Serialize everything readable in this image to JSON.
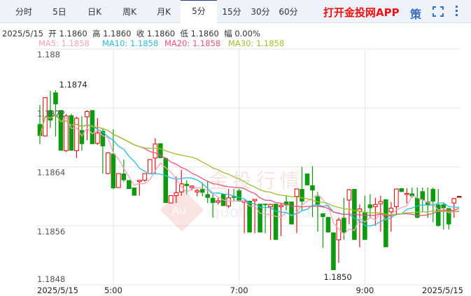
{
  "tabs": [
    {
      "label": "分时"
    },
    {
      "label": "5日"
    },
    {
      "label": "日K"
    },
    {
      "label": "周K"
    },
    {
      "label": "月K"
    },
    {
      "label": "5分",
      "active": true
    },
    {
      "label": "15分"
    },
    {
      "label": "30分"
    },
    {
      "label": "60分"
    }
  ],
  "promo": "打开金投网APP",
  "strategy_label": "策",
  "icons": {
    "fullscreen": "fullscreen-icon",
    "more": "more-vertical-icon"
  },
  "info": {
    "date": "2025/5/15",
    "open_label": "开",
    "open": "1.1860",
    "high_label": "高",
    "high": "1.1860",
    "close_label": "收",
    "close": "1.1860",
    "low_label": "低",
    "low": "1.1860",
    "change_label": "幅",
    "change": "0.00%"
  },
  "ma": [
    {
      "label": "MA5: 1.1858",
      "color": "#f7a3bd"
    },
    {
      "label": "MA10: 1.1858",
      "color": "#29bde0"
    },
    {
      "label": "MA20: 1.1858",
      "color": "#ee4f7d"
    },
    {
      "label": "MA30: 1.1858",
      "color": "#9dc02e"
    }
  ],
  "watermark": {
    "text": "金投行情",
    "logo": "Au",
    "url": "quote.cngold.org"
  },
  "chart_data": {
    "type": "candlestick",
    "colors": {
      "up": "#ee1111",
      "down": "#0e9a0e"
    },
    "ylim": [
      1.1848,
      1.188
    ],
    "yticks": [
      "1.188",
      "1.1872",
      "1.1864",
      "1.1856",
      "1.1848"
    ],
    "xticks": [
      {
        "label": "2025/5/15",
        "index": 0
      },
      {
        "label": "5:00",
        "index": 14
      },
      {
        "label": "7:00",
        "index": 38
      },
      {
        "label": "9:00",
        "index": 62
      },
      {
        "label": "2025/5/15",
        "index": 80
      }
    ],
    "max_label": "1.1874",
    "min_label": "1.1850",
    "ma_periods": [
      5,
      10,
      20,
      30
    ],
    "ohlc": [
      [
        1.18698,
        1.18724,
        1.18671,
        1.18682
      ],
      [
        1.18682,
        1.18734,
        1.18682,
        1.18734
      ],
      [
        1.18717,
        1.18743,
        1.18693,
        1.18703
      ],
      [
        1.18741,
        1.18744,
        1.18681,
        1.18725
      ],
      [
        1.18717,
        1.18717,
        1.18662,
        1.18662
      ],
      [
        1.18662,
        1.18712,
        1.1866,
        1.18709
      ],
      [
        1.1871,
        1.18712,
        1.18662,
        1.18662
      ],
      [
        1.18662,
        1.18708,
        1.18652,
        1.18706
      ],
      [
        1.1869,
        1.18709,
        1.18662,
        1.18671
      ],
      [
        1.18708,
        1.18717,
        1.18676,
        1.18715
      ],
      [
        1.18717,
        1.18717,
        1.18671,
        1.18671
      ],
      [
        1.18672,
        1.18706,
        1.1867,
        1.18686
      ],
      [
        1.18689,
        1.18693,
        1.18631,
        1.18668
      ],
      [
        1.18631,
        1.1866,
        1.1863,
        1.18659
      ],
      [
        1.18658,
        1.18691,
        1.1861,
        1.18611
      ],
      [
        1.18612,
        1.18631,
        1.18612,
        1.18631
      ],
      [
        1.18631,
        1.1865,
        1.1862,
        1.18622
      ],
      [
        1.18622,
        1.18622,
        1.1861,
        1.1861
      ],
      [
        1.18612,
        1.18612,
        1.18601,
        1.18601
      ],
      [
        1.1862,
        1.18622,
        1.18601,
        1.18622
      ],
      [
        1.18622,
        1.18631,
        1.1862,
        1.18631
      ],
      [
        1.18631,
        1.1865,
        1.1863,
        1.1865
      ],
      [
        1.18652,
        1.18679,
        1.18631,
        1.18671
      ],
      [
        1.18672,
        1.18672,
        1.18652,
        1.18652
      ],
      [
        1.18652,
        1.18652,
        1.18591,
        1.18591
      ],
      [
        1.18591,
        1.18601,
        1.18591,
        1.18601
      ],
      [
        1.18601,
        1.18627,
        1.18591,
        1.18605
      ],
      [
        1.18606,
        1.18636,
        1.18601,
        1.18617
      ],
      [
        1.18617,
        1.18622,
        1.18603,
        1.18614
      ],
      [
        1.18612,
        1.18615,
        1.18608,
        1.18614
      ],
      [
        1.18606,
        1.1861,
        1.186,
        1.18608
      ],
      [
        1.1861,
        1.18619,
        1.186,
        1.18605
      ],
      [
        1.18603,
        1.1862,
        1.18591,
        1.18598
      ],
      [
        1.18598,
        1.18603,
        1.18571,
        1.18591
      ],
      [
        1.18592,
        1.18598,
        1.18589,
        1.18594
      ],
      [
        1.18603,
        1.18603,
        1.18587,
        1.18587
      ],
      [
        1.18587,
        1.1861,
        1.18584,
        1.18598
      ],
      [
        1.186,
        1.1861,
        1.18593,
        1.18598
      ],
      [
        1.18608,
        1.1861,
        1.18593,
        1.18593
      ],
      [
        1.18592,
        1.18595,
        1.1855,
        1.18594
      ],
      [
        1.18594,
        1.18594,
        1.18551,
        1.18551
      ],
      [
        1.18594,
        1.18596,
        1.1855,
        1.18596
      ],
      [
        1.1859,
        1.1859,
        1.18551,
        1.18551
      ],
      [
        1.1859,
        1.1859,
        1.1855,
        1.18588
      ],
      [
        1.18586,
        1.1859,
        1.18541,
        1.18589
      ],
      [
        1.1859,
        1.1859,
        1.18541,
        1.18541
      ],
      [
        1.18586,
        1.1859,
        1.18546,
        1.18588
      ],
      [
        1.18593,
        1.18601,
        1.18581,
        1.18588
      ],
      [
        1.18593,
        1.18593,
        1.18562,
        1.18562
      ],
      [
        1.186,
        1.1861,
        1.1855,
        1.1861
      ],
      [
        1.1861,
        1.1864,
        1.18581,
        1.18593
      ],
      [
        1.18631,
        1.18631,
        1.18615,
        1.18615
      ],
      [
        1.18615,
        1.18641,
        1.18572,
        1.18608
      ],
      [
        1.186,
        1.18606,
        1.18552,
        1.18589
      ],
      [
        1.18577,
        1.18577,
        1.1853,
        1.18572
      ],
      [
        1.18572,
        1.18572,
        1.18551,
        1.18551
      ],
      [
        1.18551,
        1.18551,
        1.185,
        1.185
      ],
      [
        1.18541,
        1.18571,
        1.1851,
        1.18568
      ],
      [
        1.18571,
        1.18598,
        1.18541,
        1.18551
      ],
      [
        1.18595,
        1.1861,
        1.18562,
        1.18609
      ],
      [
        1.1861,
        1.1861,
        1.18541,
        1.18541
      ],
      [
        1.1858,
        1.18589,
        1.18531,
        1.18583
      ],
      [
        1.18579,
        1.18601,
        1.18541,
        1.18541
      ],
      [
        1.18589,
        1.18603,
        1.1857,
        1.18584
      ],
      [
        1.18586,
        1.18598,
        1.1856,
        1.18589
      ],
      [
        1.1859,
        1.18601,
        1.18552,
        1.18593
      ],
      [
        1.18596,
        1.18596,
        1.18531,
        1.18531
      ],
      [
        1.18579,
        1.18592,
        1.18552,
        1.18584
      ],
      [
        1.18586,
        1.1861,
        1.18574,
        1.1861
      ],
      [
        1.18611,
        1.18611,
        1.18606,
        1.18606
      ],
      [
        1.18603,
        1.18611,
        1.1859,
        1.18604
      ],
      [
        1.18604,
        1.18612,
        1.18598,
        1.186
      ],
      [
        1.18598,
        1.18612,
        1.1857,
        1.18571
      ],
      [
        1.18607,
        1.18612,
        1.18579,
        1.18595
      ],
      [
        1.18593,
        1.18612,
        1.18571,
        1.18588
      ],
      [
        1.1861,
        1.18612,
        1.18565,
        1.18593
      ],
      [
        1.18589,
        1.1861,
        1.18559,
        1.1856
      ],
      [
        1.18589,
        1.18591,
        1.18555,
        1.18584
      ],
      [
        1.18584,
        1.18584,
        1.18555,
        1.18562
      ],
      [
        1.18591,
        1.18598,
        1.18571,
        1.18597
      ],
      [
        1.186,
        1.186,
        1.186,
        1.186
      ]
    ]
  }
}
